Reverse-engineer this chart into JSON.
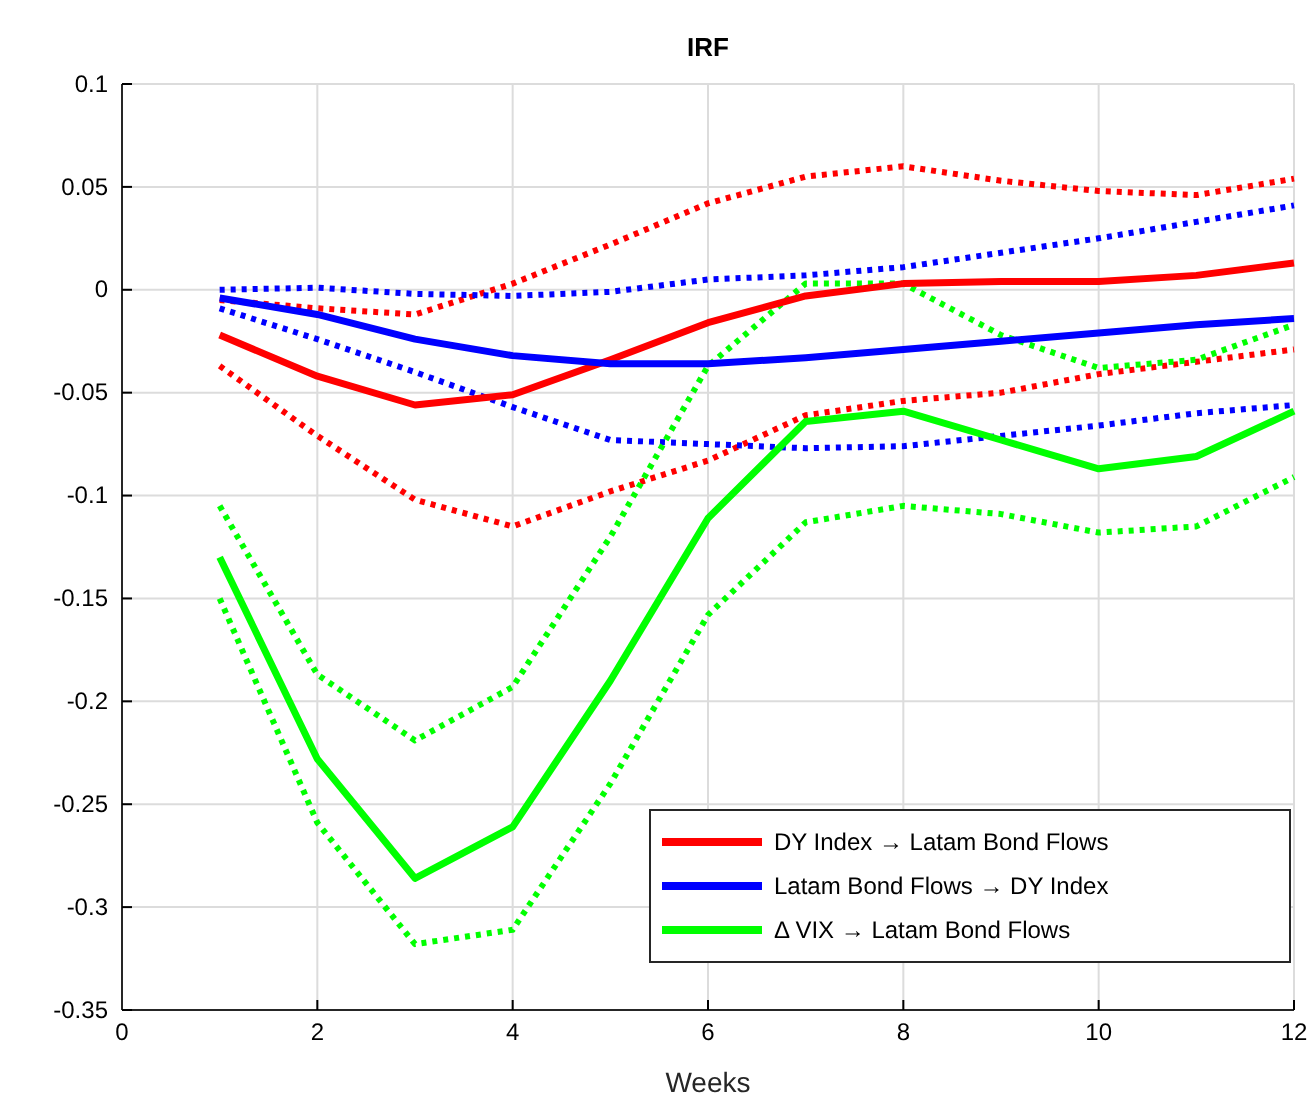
{
  "chart_data": {
    "type": "line",
    "title": "IRF",
    "xlabel": "Weeks",
    "x": [
      1,
      2,
      3,
      4,
      5,
      6,
      7,
      8,
      9,
      10,
      11,
      12
    ],
    "xlim": [
      0,
      12
    ],
    "xticks": [
      0,
      2,
      4,
      6,
      8,
      10,
      12
    ],
    "ylim": [
      -0.35,
      0.1
    ],
    "yticks": [
      -0.35,
      -0.3,
      -0.25,
      -0.2,
      -0.15,
      -0.1,
      -0.05,
      0,
      0.05,
      0.1
    ],
    "grid": true,
    "legend": "bottom right",
    "line_style": "solid",
    "marker": "none",
    "series": [
      {
        "color": "#ff0000",
        "line_style": "dotted",
        "values": [
          -0.005,
          -0.009,
          -0.012,
          0.003,
          0.022,
          0.042,
          0.055,
          0.06,
          0.053,
          0.048,
          0.046,
          0.054
        ]
      },
      {
        "color": "#ff0000",
        "line_style": "dotted",
        "values": [
          -0.037,
          -0.071,
          -0.102,
          -0.115,
          -0.098,
          -0.083,
          -0.061,
          -0.054,
          -0.05,
          -0.041,
          -0.035,
          -0.029
        ]
      },
      {
        "color": "#0000ff",
        "line_style": "dotted",
        "values": [
          0,
          0.001,
          -0.002,
          -0.003,
          -0.001,
          0.005,
          0.007,
          0.011,
          0.018,
          0.025,
          0.033,
          0.041
        ]
      },
      {
        "color": "#0000ff",
        "line_style": "dotted",
        "values": [
          -0.009,
          -0.024,
          -0.04,
          -0.057,
          -0.073,
          -0.075,
          -0.077,
          -0.076,
          -0.071,
          -0.066,
          -0.06,
          -0.056
        ]
      },
      {
        "color": "#00ff00",
        "line_style": "dotted",
        "values": [
          -0.105,
          -0.187,
          -0.219,
          -0.193,
          -0.12,
          -0.037,
          0.003,
          0.003,
          -0.022,
          -0.038,
          -0.034,
          -0.017
        ]
      },
      {
        "color": "#00ff00",
        "line_style": "dotted",
        "values": [
          -0.15,
          -0.259,
          -0.318,
          -0.311,
          -0.24,
          -0.158,
          -0.113,
          -0.105,
          -0.109,
          -0.118,
          -0.115,
          -0.091
        ]
      },
      {
        "name": "DY Index → Latam Bond Flows",
        "color": "#ff0000",
        "values": [
          -0.022,
          -0.042,
          -0.056,
          -0.051,
          -0.034,
          -0.016,
          -0.003,
          0.003,
          0.004,
          0.004,
          0.007,
          0.013
        ]
      },
      {
        "name": "Latam Bond Flows → DY Index",
        "color": "#0000ff",
        "values": [
          -0.004,
          -0.012,
          -0.024,
          -0.032,
          -0.036,
          -0.036,
          -0.033,
          -0.029,
          -0.025,
          -0.021,
          -0.017,
          -0.014
        ]
      },
      {
        "name": "Δ VIX → Latam Bond Flows",
        "color": "#00ff00",
        "values": [
          -0.13,
          -0.228,
          -0.286,
          -0.261,
          -0.19,
          -0.111,
          -0.064,
          -0.059,
          -0.073,
          -0.087,
          -0.081,
          -0.059
        ]
      }
    ]
  }
}
